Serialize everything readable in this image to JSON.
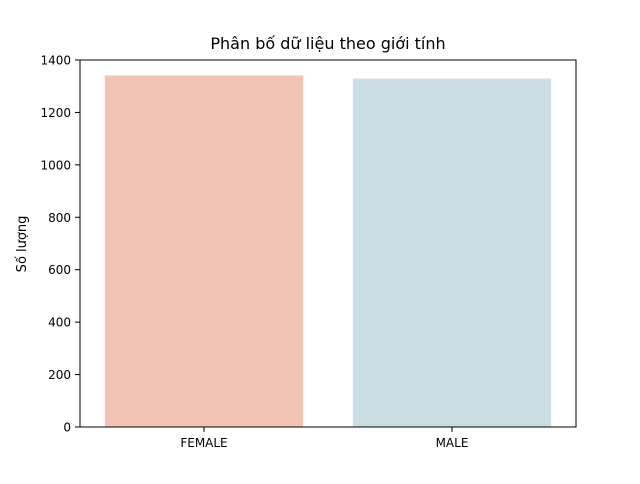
{
  "chart_data": {
    "type": "bar",
    "title": "Phân bố dữ liệu theo giới tính",
    "xlabel": "",
    "ylabel": "Số lượng",
    "categories": [
      "FEMALE",
      "MALE"
    ],
    "values": [
      1341,
      1329
    ],
    "colors": [
      "#f1c3b4",
      "#cadde3"
    ],
    "ylim": [
      0,
      1400
    ],
    "yticks": [
      0,
      200,
      400,
      600,
      800,
      1000,
      1200,
      1400
    ],
    "grid": false,
    "legend": "none"
  }
}
